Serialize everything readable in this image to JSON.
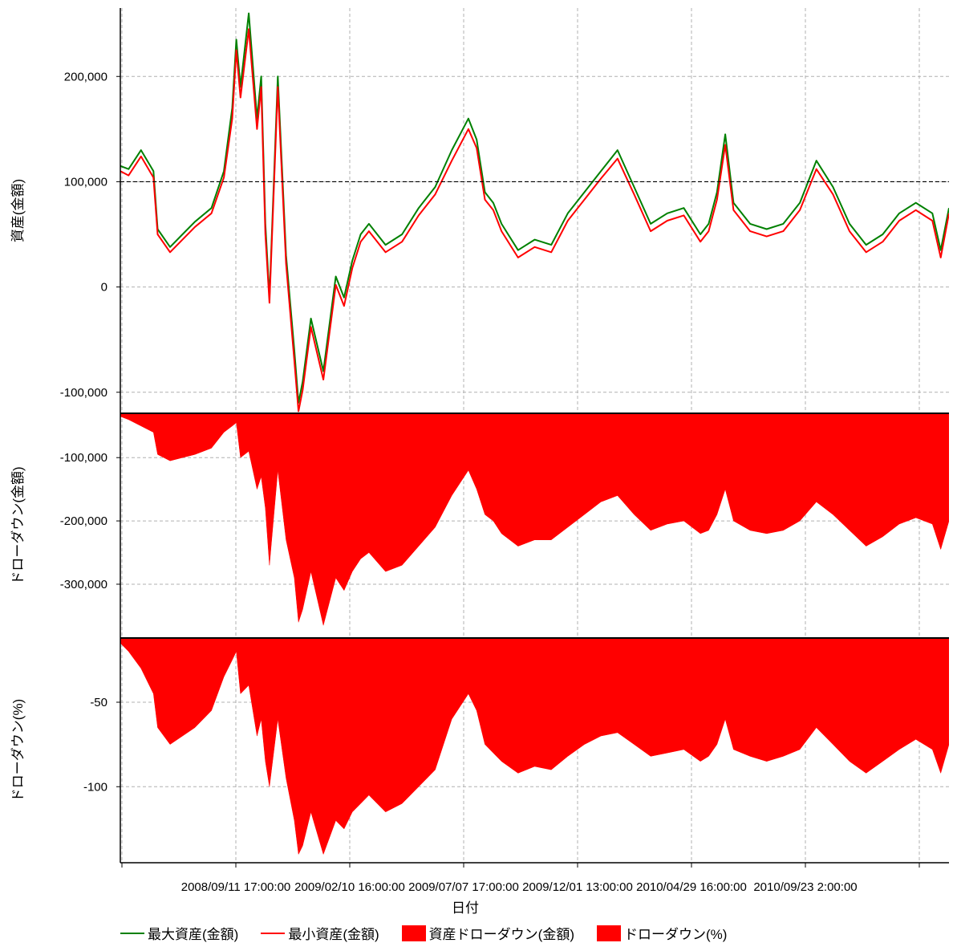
{
  "chart_data": [
    {
      "type": "line",
      "panel": "top",
      "ylabel": "資産(金額)",
      "ylim": [
        -120000,
        265000
      ],
      "yticks": [
        -100000,
        0,
        100000,
        200000
      ],
      "ytick_labels": [
        "-100,000",
        "0",
        "100,000",
        "200,000"
      ],
      "reference_line": 100000,
      "grid": true,
      "series": [
        {
          "name": "最大資産(金額)",
          "color": "#008000",
          "x": [
            0,
            0.01,
            0.025,
            0.04,
            0.045,
            0.06,
            0.075,
            0.09,
            0.11,
            0.125,
            0.135,
            0.14,
            0.145,
            0.155,
            0.165,
            0.17,
            0.175,
            0.18,
            0.19,
            0.2,
            0.21,
            0.215,
            0.22,
            0.23,
            0.245,
            0.26,
            0.27,
            0.28,
            0.29,
            0.3,
            0.32,
            0.34,
            0.36,
            0.38,
            0.4,
            0.42,
            0.43,
            0.44,
            0.45,
            0.46,
            0.48,
            0.5,
            0.52,
            0.54,
            0.56,
            0.58,
            0.6,
            0.62,
            0.64,
            0.66,
            0.68,
            0.7,
            0.71,
            0.72,
            0.73,
            0.74,
            0.76,
            0.78,
            0.8,
            0.82,
            0.84,
            0.86,
            0.88,
            0.9,
            0.92,
            0.94,
            0.96,
            0.98,
            0.99,
            1.0
          ],
          "y": [
            115000,
            112000,
            130000,
            110000,
            55000,
            38000,
            50000,
            62000,
            75000,
            110000,
            170000,
            235000,
            190000,
            260000,
            160000,
            200000,
            60000,
            -10000,
            200000,
            30000,
            -60000,
            -110000,
            -90000,
            -30000,
            -80000,
            10000,
            -10000,
            25000,
            50000,
            60000,
            40000,
            50000,
            75000,
            95000,
            130000,
            160000,
            140000,
            90000,
            80000,
            60000,
            35000,
            45000,
            40000,
            70000,
            90000,
            110000,
            130000,
            95000,
            60000,
            70000,
            75000,
            50000,
            60000,
            90000,
            145000,
            80000,
            60000,
            55000,
            60000,
            80000,
            120000,
            95000,
            60000,
            40000,
            50000,
            70000,
            80000,
            70000,
            35000,
            75000
          ]
        },
        {
          "name": "最小資産(金額)",
          "color": "#ff0000",
          "x": [
            0,
            0.01,
            0.025,
            0.04,
            0.045,
            0.06,
            0.075,
            0.09,
            0.11,
            0.125,
            0.135,
            0.14,
            0.145,
            0.155,
            0.165,
            0.17,
            0.175,
            0.18,
            0.19,
            0.2,
            0.21,
            0.215,
            0.22,
            0.23,
            0.245,
            0.26,
            0.27,
            0.28,
            0.29,
            0.3,
            0.32,
            0.34,
            0.36,
            0.38,
            0.4,
            0.42,
            0.43,
            0.44,
            0.45,
            0.46,
            0.48,
            0.5,
            0.52,
            0.54,
            0.56,
            0.58,
            0.6,
            0.62,
            0.64,
            0.66,
            0.68,
            0.7,
            0.71,
            0.72,
            0.73,
            0.74,
            0.76,
            0.78,
            0.8,
            0.82,
            0.84,
            0.86,
            0.88,
            0.9,
            0.92,
            0.94,
            0.96,
            0.98,
            0.99,
            1.0
          ],
          "y": [
            110000,
            106000,
            124000,
            104000,
            50000,
            33000,
            45000,
            57000,
            70000,
            104000,
            160000,
            225000,
            180000,
            245000,
            150000,
            190000,
            50000,
            -15000,
            190000,
            22000,
            -70000,
            -118000,
            -98000,
            -38000,
            -88000,
            2000,
            -18000,
            18000,
            43000,
            53000,
            33000,
            43000,
            68000,
            88000,
            120000,
            150000,
            132000,
            83000,
            73000,
            53000,
            28000,
            38000,
            33000,
            63000,
            83000,
            103000,
            122000,
            88000,
            53000,
            63000,
            68000,
            43000,
            53000,
            83000,
            135000,
            73000,
            53000,
            48000,
            53000,
            73000,
            112000,
            88000,
            53000,
            33000,
            43000,
            63000,
            73000,
            63000,
            28000,
            70000
          ]
        }
      ]
    },
    {
      "type": "area",
      "panel": "middle",
      "ylabel": "ドローダウン(金額)",
      "ylim": [
        -385000,
        -30000
      ],
      "yticks": [
        -100000,
        -200000,
        -300000
      ],
      "ytick_labels": [
        "-100,000",
        "-200,000",
        "-300,000"
      ],
      "grid": true,
      "series": [
        {
          "name": "資産ドローダウン(金額)",
          "color": "#ff0000",
          "x": [
            0,
            0.01,
            0.025,
            0.04,
            0.045,
            0.06,
            0.075,
            0.09,
            0.11,
            0.125,
            0.135,
            0.14,
            0.145,
            0.155,
            0.165,
            0.17,
            0.175,
            0.18,
            0.19,
            0.2,
            0.21,
            0.215,
            0.22,
            0.23,
            0.245,
            0.26,
            0.27,
            0.28,
            0.29,
            0.3,
            0.32,
            0.34,
            0.36,
            0.38,
            0.4,
            0.42,
            0.43,
            0.44,
            0.45,
            0.46,
            0.48,
            0.5,
            0.52,
            0.54,
            0.56,
            0.58,
            0.6,
            0.62,
            0.64,
            0.66,
            0.68,
            0.7,
            0.71,
            0.72,
            0.73,
            0.74,
            0.76,
            0.78,
            0.8,
            0.82,
            0.84,
            0.86,
            0.88,
            0.9,
            0.92,
            0.94,
            0.96,
            0.98,
            0.99,
            1.0
          ],
          "y": [
            -35000,
            -40000,
            -50000,
            -60000,
            -95000,
            -105000,
            -100000,
            -95000,
            -85000,
            -60000,
            -50000,
            -45000,
            -100000,
            -90000,
            -150000,
            -130000,
            -180000,
            -270000,
            -120000,
            -230000,
            -290000,
            -360000,
            -340000,
            -280000,
            -365000,
            -290000,
            -310000,
            -280000,
            -260000,
            -250000,
            -280000,
            -270000,
            -240000,
            -210000,
            -160000,
            -120000,
            -150000,
            -190000,
            -200000,
            -220000,
            -240000,
            -230000,
            -230000,
            -210000,
            -190000,
            -170000,
            -160000,
            -190000,
            -215000,
            -205000,
            -200000,
            -220000,
            -215000,
            -190000,
            -150000,
            -200000,
            -215000,
            -220000,
            -215000,
            -200000,
            -170000,
            -190000,
            -215000,
            -240000,
            -225000,
            -205000,
            -195000,
            -205000,
            -245000,
            -200000
          ]
        }
      ]
    },
    {
      "type": "area",
      "panel": "bottom",
      "ylabel": "ドローダウン(%)",
      "ylim": [
        -145,
        -12
      ],
      "yticks": [
        -50,
        -100
      ],
      "ytick_labels": [
        "-50",
        "-100"
      ],
      "grid": true,
      "series": [
        {
          "name": "ドローダウン(%)",
          "color": "#ff0000",
          "x": [
            0,
            0.01,
            0.025,
            0.04,
            0.045,
            0.06,
            0.075,
            0.09,
            0.11,
            0.125,
            0.135,
            0.14,
            0.145,
            0.155,
            0.165,
            0.17,
            0.175,
            0.18,
            0.19,
            0.2,
            0.21,
            0.215,
            0.22,
            0.23,
            0.245,
            0.26,
            0.27,
            0.28,
            0.29,
            0.3,
            0.32,
            0.34,
            0.36,
            0.38,
            0.4,
            0.42,
            0.43,
            0.44,
            0.45,
            0.46,
            0.48,
            0.5,
            0.52,
            0.54,
            0.56,
            0.58,
            0.6,
            0.62,
            0.64,
            0.66,
            0.68,
            0.7,
            0.71,
            0.72,
            0.73,
            0.74,
            0.76,
            0.78,
            0.8,
            0.82,
            0.84,
            0.86,
            0.88,
            0.9,
            0.92,
            0.94,
            0.96,
            0.98,
            0.99,
            1.0
          ],
          "y": [
            -15,
            -20,
            -30,
            -45,
            -65,
            -75,
            -70,
            -65,
            -55,
            -35,
            -25,
            -20,
            -45,
            -40,
            -70,
            -60,
            -85,
            -100,
            -60,
            -95,
            -120,
            -140,
            -135,
            -115,
            -140,
            -120,
            -125,
            -115,
            -110,
            -105,
            -115,
            -110,
            -100,
            -90,
            -60,
            -45,
            -55,
            -75,
            -80,
            -85,
            -92,
            -88,
            -90,
            -82,
            -75,
            -70,
            -68,
            -75,
            -82,
            -80,
            -78,
            -85,
            -82,
            -75,
            -60,
            -78,
            -82,
            -85,
            -82,
            -78,
            -65,
            -75,
            -85,
            -92,
            -85,
            -78,
            -72,
            -78,
            -92,
            -75
          ]
        }
      ]
    }
  ],
  "x_axis": {
    "xlabel": "日付",
    "tick_labels": [
      "2008/09/11 17:00:00",
      "2009/02/10 16:00:00",
      "2009/07/07 17:00:00",
      "2009/12/01 13:00:00",
      "2010/04/29 16:00:00",
      "2010/09/23 2:00:00"
    ]
  },
  "legend": [
    {
      "label": "最大資産(金額)",
      "kind": "line",
      "color": "#008000"
    },
    {
      "label": "最小資産(金額)",
      "kind": "line",
      "color": "#ff0000"
    },
    {
      "label": "資産ドローダウン(金額)",
      "kind": "box",
      "color": "#ff0000"
    },
    {
      "label": "ドローダウン(%)",
      "kind": "box",
      "color": "#ff0000"
    }
  ]
}
